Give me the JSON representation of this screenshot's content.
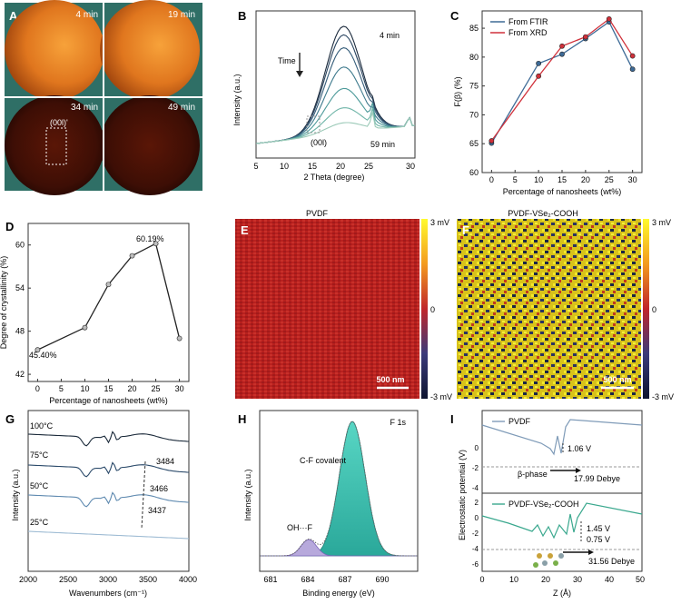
{
  "panels": {
    "A": {
      "label": "A",
      "tiles": [
        {
          "time": "4 min"
        },
        {
          "time": "19 min"
        },
        {
          "time": "34 min",
          "annotation": "(00l)'"
        },
        {
          "time": "49 min"
        }
      ]
    },
    "B": {
      "label": "B",
      "xlabel": "2 Theta (degree)",
      "ylabel": "Intensity (a.u.)",
      "xticks": [
        "5",
        "10",
        "15",
        "20",
        "25",
        "30"
      ],
      "time_label": "Time",
      "top_label": "4 min",
      "bottom_label": "59 min",
      "peak_label": "(00l)"
    },
    "D_ann": {
      "max_label": "60.19%",
      "min_label": "45.40%"
    },
    "E": {
      "label": "E",
      "title": "PVDF",
      "scalebar": "500 nm",
      "cbar_top": "3 mV",
      "cbar_mid": "0",
      "cbar_bottom": "-3 mV"
    },
    "F": {
      "label": "F",
      "title": "PVDF-VSe₂-COOH",
      "scalebar": "500 nm",
      "cbar_top": "3 mV",
      "cbar_mid": "0",
      "cbar_bottom": "-3 mV"
    },
    "G": {
      "label": "G",
      "xlabel": "Wavenumbers (cm⁻¹)",
      "ylabel": "Intensity (a.u.)",
      "xticks": [
        "2000",
        "2500",
        "3000",
        "3500",
        "4000"
      ],
      "curves": [
        {
          "temp": "100°C",
          "peak": "3484",
          "color": "#1b2a3a"
        },
        {
          "temp": "75°C",
          "peak": "3466",
          "color": "#2b4a6a"
        },
        {
          "temp": "50°C",
          "peak": "3437",
          "color": "#5f8ab0"
        },
        {
          "temp": "25°C",
          "peak": "",
          "color": "#9fbcd4"
        }
      ]
    },
    "H": {
      "label": "H",
      "title": "F 1s",
      "xlabel": "Binding energy (eV)",
      "ylabel": "Intensity (a.u.)",
      "xticks": [
        "681",
        "684",
        "687",
        "690"
      ],
      "peak1_label": "C-F covalent",
      "peak2_label": "OH···F"
    },
    "I": {
      "label": "I",
      "xlabel": "Z (Å)",
      "ylabel": "Electrostatic potential (V)",
      "xticks": [
        "0",
        "10",
        "20",
        "30",
        "40",
        "50"
      ],
      "top": {
        "legend": "PVDF",
        "yticks": [
          "0",
          "-2",
          "-4"
        ],
        "gap_label": "1.06 V",
        "phase_label": "β-phase",
        "dipole_label": "17.99 Debye"
      },
      "bottom": {
        "legend": "PVDF-VSe₂-COOH",
        "yticks": [
          "2",
          "0",
          "-2",
          "-4",
          "-6"
        ],
        "gap1_label": "1.45 V",
        "gap2_label": "0.75 V",
        "dipole_label": "31.56 Debye"
      }
    }
  },
  "chart_data": [
    {
      "id": "C",
      "type": "line",
      "title": "",
      "xlabel": "Percentage of nanosheets (wt%)",
      "ylabel": "F(β) (%)",
      "x": [
        0,
        10,
        15,
        20,
        25,
        30
      ],
      "xlim": [
        -2,
        32
      ],
      "ylim": [
        60,
        88
      ],
      "xticks": [
        0,
        5,
        10,
        15,
        20,
        25,
        30
      ],
      "yticks": [
        60,
        65,
        70,
        75,
        80,
        85
      ],
      "legend_position": "top-left",
      "series": [
        {
          "name": "From FTIR",
          "color": "#3d6a96",
          "values": [
            65.1,
            78.9,
            80.5,
            83.2,
            86.1,
            77.9
          ]
        },
        {
          "name": "From XRD",
          "color": "#d0303a",
          "values": [
            65.5,
            76.7,
            81.9,
            83.5,
            86.6,
            80.2
          ]
        }
      ]
    },
    {
      "id": "D",
      "type": "line",
      "title": "",
      "xlabel": "Percentage of nanosheets (wt%)",
      "ylabel": "Degree of crystallinity (%)",
      "x": [
        0,
        10,
        15,
        20,
        25,
        30
      ],
      "xlim": [
        -2,
        32
      ],
      "ylim": [
        41,
        63
      ],
      "xticks": [
        0,
        5,
        10,
        15,
        20,
        25,
        30
      ],
      "yticks": [
        42,
        48,
        54,
        60
      ],
      "series": [
        {
          "name": "Crystallinity",
          "color": "#222222",
          "values": [
            45.4,
            48.5,
            54.5,
            58.5,
            60.19,
            47.0
          ]
        }
      ]
    }
  ]
}
